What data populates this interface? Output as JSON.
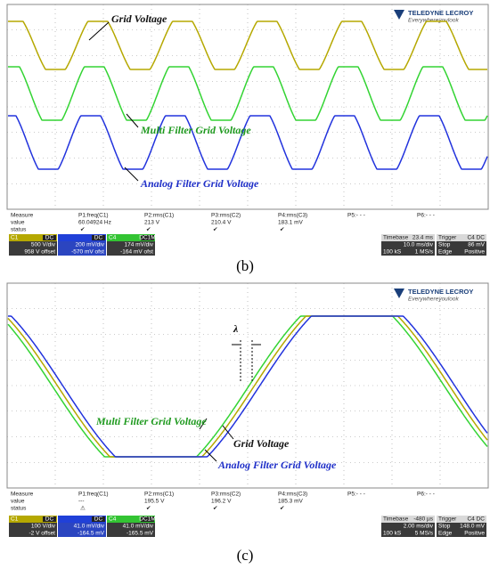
{
  "panels": [
    {
      "caption": "(b)",
      "logo": {
        "brand": "TELEDYNE LECROY",
        "tagline": "Everywhereyoulook"
      },
      "annotations": [
        {
          "text": "Grid Voltage",
          "color": "#111111"
        },
        {
          "text": "Multi Filter Grid Voltage",
          "color": "#1f9a1f"
        },
        {
          "text": "Analog Filter Grid Voltage",
          "color": "#1f2fc8"
        }
      ],
      "measure": {
        "row_labels": [
          "Measure",
          "value",
          "status"
        ],
        "columns": [
          {
            "name": "P1:freq(C1)",
            "value": "60.04924 Hz",
            "status": "✔"
          },
          {
            "name": "P2:rms(C1)",
            "value": "213 V",
            "status": "✔"
          },
          {
            "name": "P3:rms(C2)",
            "value": "210.4 V",
            "status": "✔"
          },
          {
            "name": "P4:rms(C3)",
            "value": "183.1 mV",
            "status": "✔"
          },
          {
            "name": "P5:- - -"
          },
          {
            "name": "P6:- - -"
          }
        ]
      },
      "channels": [
        {
          "name": "C1",
          "coupling": "DC",
          "scale": "500 V/div",
          "offset": "958 V offset",
          "color": "#b5a800"
        },
        {
          "coupling": "DC",
          "scale": "200 mV/div",
          "offset": "-570 mV ofst",
          "color": "#2040d8"
        },
        {
          "name": "C4",
          "coupling": "DC1M",
          "scale": "174 mV/div",
          "offset": "-164 mV ofst",
          "color": "#33c433"
        }
      ],
      "timebase": {
        "label": "Timebase",
        "value": "23.4 ms",
        "scale": "10.0 ms/div",
        "samples": "100 kS",
        "rate": "1 MS/s"
      },
      "trigger": {
        "label": "Trigger",
        "source": "C4 DC",
        "mode": "Stop",
        "level": "86 mV",
        "type": "Edge",
        "slope": "Positive"
      }
    },
    {
      "caption": "(c)",
      "logo": {
        "brand": "TELEDYNE LECROY",
        "tagline": "Everywhereyoulook"
      },
      "annotations": [
        {
          "text": "λ",
          "color": "#111111"
        },
        {
          "text": "Multi Filter Grid Voltage",
          "color": "#1f9a1f"
        },
        {
          "text": "Grid Voltage",
          "color": "#111111"
        },
        {
          "text": "Analog Filter Grid Voltage",
          "color": "#1f2fc8"
        }
      ],
      "measure": {
        "row_labels": [
          "Measure",
          "value",
          "status"
        ],
        "columns": [
          {
            "name": "P1:freq(C1)",
            "value": "---",
            "status": "⚠"
          },
          {
            "name": "P2:rms(C1)",
            "value": "195.5 V",
            "status": "✔"
          },
          {
            "name": "P3:rms(C2)",
            "value": "196.2 V",
            "status": "✔"
          },
          {
            "name": "P4:rms(C3)",
            "value": "185.3 mV",
            "status": "✔"
          },
          {
            "name": "P5:- - -"
          },
          {
            "name": "P6:- - -"
          }
        ]
      },
      "channels": [
        {
          "name": "C1",
          "coupling": "DC",
          "scale": "100 V/div",
          "offset": "-2 V offset",
          "color": "#b5a800"
        },
        {
          "coupling": "DC",
          "scale": "41.0 mV/div",
          "offset": "-164.5 mV",
          "color": "#2040d8"
        },
        {
          "name": "C4",
          "coupling": "DC1M",
          "scale": "41.0 mV/div",
          "offset": "-165.5 mV",
          "color": "#33c433"
        }
      ],
      "timebase": {
        "label": "Timebase",
        "value": "-480 µs",
        "scale": "2.00 ms/div",
        "samples": "100 kS",
        "rate": "5 MS/s"
      },
      "trigger": {
        "label": "Trigger",
        "source": "C4 DC",
        "mode": "Stop",
        "level": "148.0 mV",
        "type": "Edge",
        "slope": "Positive"
      }
    }
  ]
}
